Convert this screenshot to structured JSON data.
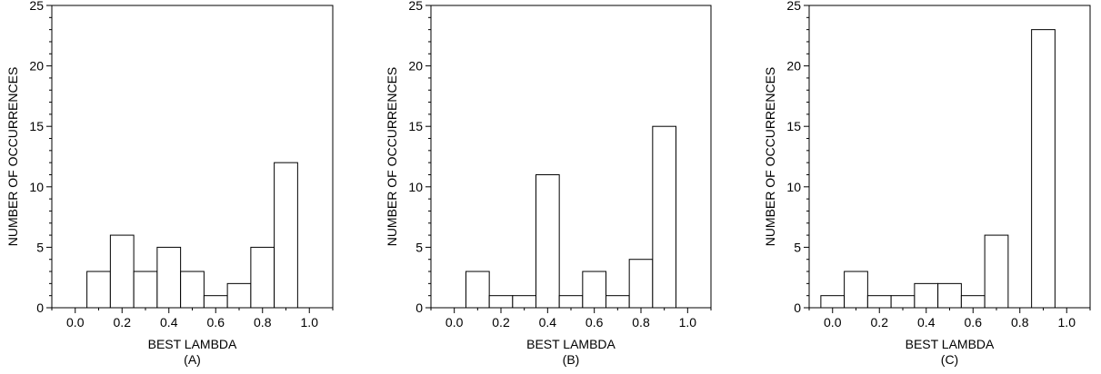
{
  "chart_data": [
    {
      "type": "bar",
      "xlabel": "BEST LAMBDA",
      "ylabel": "NUMBER OF OCCURRENCES",
      "caption": "(A)",
      "xlim": [
        -0.1,
        1.1
      ],
      "ylim": [
        0,
        25
      ],
      "xticks": [
        "0.0",
        "0.2",
        "0.4",
        "0.6",
        "0.8",
        "1.0"
      ],
      "yticks": [
        "0",
        "5",
        "10",
        "15",
        "20",
        "25"
      ],
      "bin_width": 0.1,
      "x": [
        0.0,
        0.1,
        0.2,
        0.3,
        0.4,
        0.5,
        0.6,
        0.7,
        0.8,
        0.9,
        1.0
      ],
      "values": [
        0,
        3,
        6,
        3,
        5,
        3,
        1,
        2,
        5,
        12,
        0
      ]
    },
    {
      "type": "bar",
      "xlabel": "BEST LAMBDA",
      "ylabel": "NUMBER OF OCCURRENCES",
      "caption": "(B)",
      "xlim": [
        -0.1,
        1.1
      ],
      "ylim": [
        0,
        25
      ],
      "xticks": [
        "0.0",
        "0.2",
        "0.4",
        "0.6",
        "0.8",
        "1.0"
      ],
      "yticks": [
        "0",
        "5",
        "10",
        "15",
        "20",
        "25"
      ],
      "bin_width": 0.1,
      "x": [
        0.0,
        0.1,
        0.2,
        0.3,
        0.4,
        0.5,
        0.6,
        0.7,
        0.8,
        0.9,
        1.0
      ],
      "values": [
        0,
        3,
        1,
        1,
        11,
        1,
        3,
        1,
        4,
        15,
        0
      ]
    },
    {
      "type": "bar",
      "xlabel": "BEST LAMBDA",
      "ylabel": "NUMBER OF OCCURRENCES",
      "caption": "(C)",
      "xlim": [
        -0.1,
        1.1
      ],
      "ylim": [
        0,
        25
      ],
      "xticks": [
        "0.0",
        "0.2",
        "0.4",
        "0.6",
        "0.8",
        "1.0"
      ],
      "yticks": [
        "0",
        "5",
        "10",
        "15",
        "20",
        "25"
      ],
      "bin_width": 0.1,
      "x": [
        0.0,
        0.1,
        0.2,
        0.3,
        0.4,
        0.5,
        0.6,
        0.7,
        0.8,
        0.9,
        1.0
      ],
      "values": [
        1,
        3,
        1,
        1,
        2,
        2,
        1,
        6,
        0,
        23,
        0
      ]
    }
  ]
}
